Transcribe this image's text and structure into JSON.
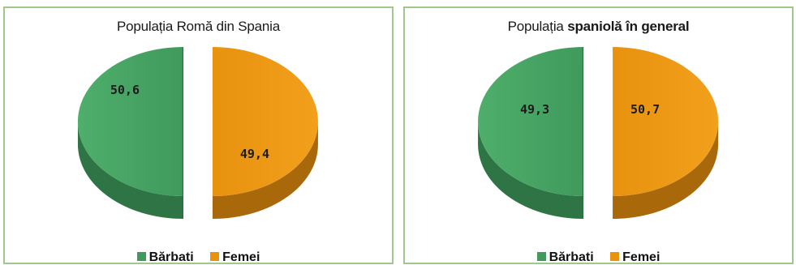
{
  "chart_data": [
    {
      "type": "pie",
      "title": "Populația Romă din Spania",
      "title_bold": "",
      "title_rest": "",
      "slices": [
        {
          "label": "Bărbati",
          "value": 50.6,
          "text": "50,6"
        },
        {
          "label": "Femei",
          "value": 49.4,
          "text": "49,4"
        }
      ],
      "legend": [
        "Bărbati",
        "Femei"
      ],
      "legend_placement": "bottom",
      "exploded": true
    },
    {
      "type": "pie",
      "title": "Populația",
      "title_bold": "spaniolă în general",
      "title_rest": "",
      "slices": [
        {
          "label": "Bărbati",
          "value": 49.3,
          "text": "49,3"
        },
        {
          "label": "Femei",
          "value": 50.7,
          "text": "50,7"
        }
      ],
      "legend": [
        "Bărbati",
        "Femei"
      ],
      "legend_placement": "bottom",
      "exploded": true
    }
  ],
  "colors": {
    "barbati": "#3f9a5c",
    "barbati_side": "#2f7444",
    "femei": "#e8920e",
    "femei_side": "#a9690a",
    "border": "#9ec88c"
  }
}
